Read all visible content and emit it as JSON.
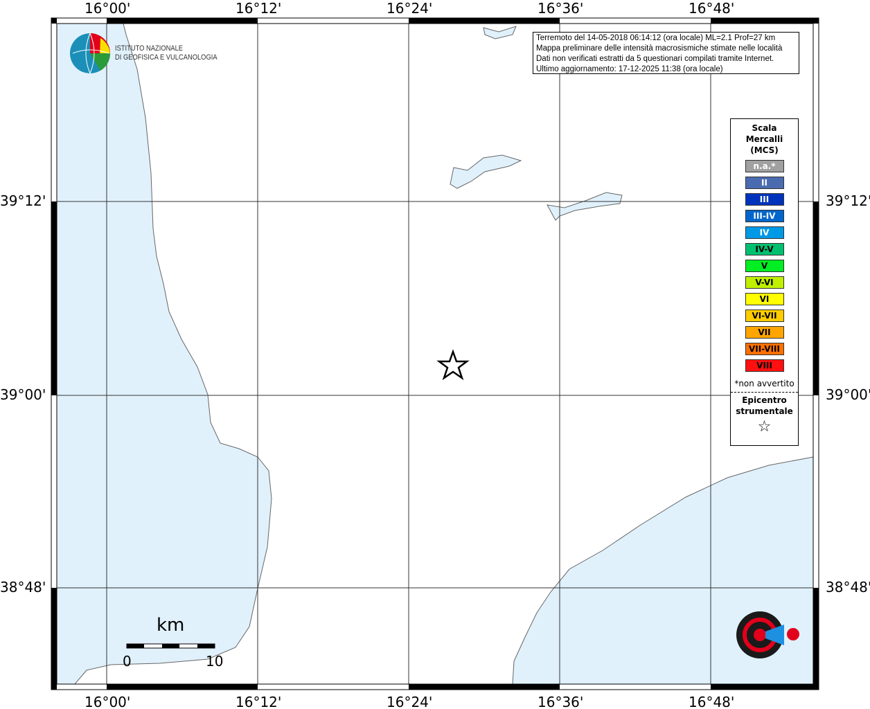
{
  "map": {
    "lon_ticks": [
      "16°00'",
      "16°12'",
      "16°24'",
      "16°36'",
      "16°48'"
    ],
    "lat_ticks": [
      "39°12'",
      "39°00'",
      "38°48'"
    ],
    "sea_color": "#e0f1fc",
    "land_color": "#ffffff"
  },
  "info": {
    "lines": [
      "Terremoto del 14-05-2018 06:14:12 (ora locale) ML=2.1 Prof=27 km",
      "Mappa preliminare delle intensità macrosismiche stimate nelle località",
      "Dati non verificati estratti da 5 questionari compilati tramite Internet.",
      "Ultimo aggiornamento: 17-12-2025 11:38 (ora locale)"
    ]
  },
  "legend": {
    "title": [
      "Scala",
      "Mercalli",
      "(MCS)"
    ],
    "items": [
      {
        "label": "n.a.*",
        "color": "#a0a0a0",
        "text": "#fff"
      },
      {
        "label": "II",
        "color": "#4b6bb0",
        "text": "#fff"
      },
      {
        "label": "III",
        "color": "#0033bb",
        "text": "#fff"
      },
      {
        "label": "III-IV",
        "color": "#0066cc",
        "text": "#fff"
      },
      {
        "label": "IV",
        "color": "#0099e6",
        "text": "#fff"
      },
      {
        "label": "IV-V",
        "color": "#00c070",
        "text": "#000"
      },
      {
        "label": "V",
        "color": "#00ee22",
        "text": "#000"
      },
      {
        "label": "V-VI",
        "color": "#c0f000",
        "text": "#000"
      },
      {
        "label": "VI",
        "color": "#ffff00",
        "text": "#000"
      },
      {
        "label": "VI-VII",
        "color": "#ffcc00",
        "text": "#000"
      },
      {
        "label": "VII",
        "color": "#ffa500",
        "text": "#000"
      },
      {
        "label": "VII-VIII",
        "color": "#ff7000",
        "text": "#000"
      },
      {
        "label": "VIII",
        "color": "#ff1010",
        "text": "#000"
      }
    ],
    "note": "*non avvertito",
    "epicenter_label": [
      "Epicentro",
      "strumentale"
    ]
  },
  "scalebar": {
    "unit": "km",
    "min": "0",
    "max": "10"
  },
  "logos": {
    "ingv": [
      "ISTITUTO NAZIONALE",
      "DI GEOFISICA E VULCANOLOGIA"
    ],
    "hsit": "www.haisentitoilterremoto.it"
  }
}
